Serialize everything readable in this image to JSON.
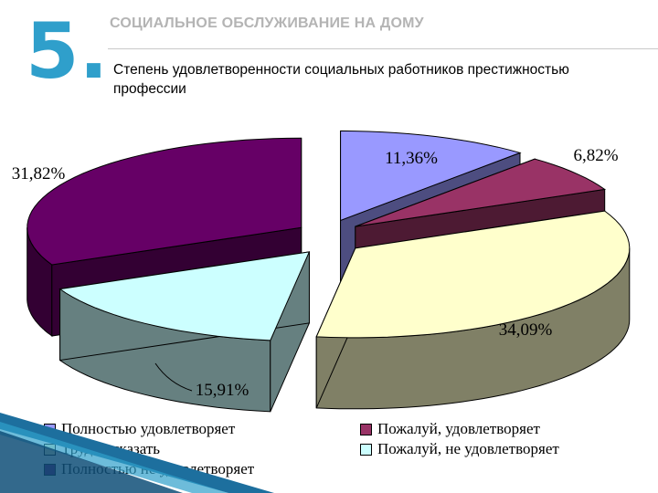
{
  "slide": {
    "number": "5.",
    "section_title": "СОЦИАЛЬНОЕ ОБСЛУЖИВАНИЕ НА ДОМУ",
    "subtitle": "Степень удовлетворенности социальных работников престижностью профессии"
  },
  "colors": {
    "slide_number": "#2f9fcb",
    "corner_accent": "#1d6f9e"
  },
  "chart_data": {
    "type": "pie",
    "title": "",
    "exploded": true,
    "style": "3d",
    "legend_position": "bottom",
    "slices": [
      {
        "name": "Полностью удовлетворяет",
        "value": 11.36,
        "label": "11,36%",
        "color": "#9999ff",
        "side_color": "#4d4d80"
      },
      {
        "name": "Пожалуй, удовлетворяет",
        "value": 6.82,
        "label": "6,82%",
        "color": "#993366",
        "side_color": "#4d1a33"
      },
      {
        "name": "Трудно сказать",
        "value": 34.09,
        "label": "34,09%",
        "color": "#ffffcc",
        "side_color": "#808066"
      },
      {
        "name": "Пожалуй, не удовлетворяет",
        "value": 15.91,
        "label": "15,91%",
        "color": "#ccffff",
        "side_color": "#668080"
      },
      {
        "name": "Полностью не удовлетворяет",
        "value": 31.82,
        "label": "31,82%",
        "color": "#660066",
        "side_color": "#330033"
      }
    ],
    "legend": [
      {
        "name": "Полностью удовлетворяет",
        "color": "#9999ff"
      },
      {
        "name": "Пожалуй, удовлетворяет",
        "color": "#993366"
      },
      {
        "name": "Трудно сказать",
        "color": "#ffffcc"
      },
      {
        "name": "Пожалуй, не удовлетворяет",
        "color": "#ccffff"
      },
      {
        "name": "Полностью не удовлетворяет",
        "color": "#660066"
      }
    ]
  }
}
